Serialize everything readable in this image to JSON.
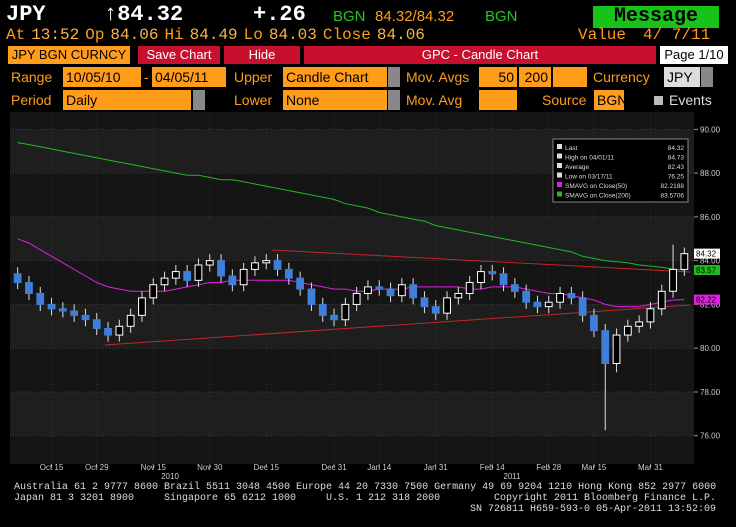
{
  "header": {
    "ticker": "JPY",
    "price": "↑84.32",
    "change": "+.26",
    "source": "BGN",
    "bid_ask": "84.32/84.32",
    "source2": "BGN",
    "message": "Message",
    "quote": [
      {
        "label": "At",
        "value": "13:52"
      },
      {
        "label": "Op",
        "value": "84.06"
      },
      {
        "label": "Hi",
        "value": "84.49"
      },
      {
        "label": "Lo",
        "value": "84.03"
      },
      {
        "label": "Close",
        "value": "84.06"
      }
    ],
    "value_label": "Value",
    "value_date": "4/ 7/11"
  },
  "toolbar": {
    "security": "JPY BGN CURNCY",
    "save": "Save Chart",
    "hide": "Hide",
    "title": "GPC - Candle Chart",
    "page": "Page 1/10"
  },
  "form": {
    "range_label": "Range",
    "range_start": "10/05/10",
    "range_sep": "-",
    "range_end": "04/05/11",
    "upper_label": "Upper",
    "upper": "Candle Chart",
    "mov_avgs_label": "Mov. Avgs",
    "mov_avg_1": "50",
    "mov_avg_2": "200",
    "currency_label": "Currency",
    "currency": "JPY",
    "period_label": "Period",
    "period": "Daily",
    "lower_label": "Lower",
    "lower": "None",
    "mov_avg_label": "Mov. Avg",
    "source_label": "Source",
    "source": "BGN",
    "events": "Events"
  },
  "chart_data": {
    "type": "candlestick",
    "categories": [
      null,
      null,
      null,
      "Oct 15",
      null,
      null,
      null,
      "Oct 29",
      null,
      null,
      null,
      null,
      "Nov 15",
      null,
      null,
      null,
      null,
      "Nov 30",
      null,
      null,
      null,
      null,
      "Dec 15",
      null,
      null,
      null,
      null,
      null,
      "Dec 31",
      null,
      null,
      null,
      "Jan 14",
      null,
      null,
      null,
      null,
      "Jan 31",
      null,
      null,
      null,
      null,
      "Feb 14",
      null,
      null,
      null,
      null,
      "Feb 28",
      null,
      null,
      null,
      "Mar 15",
      null,
      null,
      null,
      null,
      "Mar 31",
      null,
      null,
      null
    ],
    "year_labels": [
      "2010",
      "2011"
    ],
    "open": [
      83.4,
      83.0,
      82.5,
      82.0,
      81.8,
      81.7,
      81.5,
      81.3,
      80.9,
      80.6,
      81.0,
      81.5,
      82.3,
      82.9,
      83.2,
      83.5,
      83.1,
      83.8,
      84.0,
      83.3,
      82.9,
      83.6,
      83.9,
      84.0,
      83.6,
      83.2,
      82.7,
      82.0,
      81.5,
      81.3,
      82.0,
      82.5,
      82.8,
      82.7,
      82.4,
      82.9,
      82.3,
      81.9,
      81.6,
      82.3,
      82.5,
      83.0,
      83.5,
      83.4,
      82.9,
      82.6,
      82.1,
      81.9,
      82.1,
      82.5,
      82.3,
      81.5,
      80.8,
      79.3,
      80.6,
      81.0,
      81.2,
      81.8,
      82.6,
      83.6
    ],
    "high": [
      83.7,
      83.3,
      82.8,
      82.3,
      82.1,
      82.0,
      81.8,
      81.6,
      81.2,
      81.3,
      81.8,
      82.6,
      83.2,
      83.5,
      83.8,
      83.8,
      84.1,
      84.3,
      84.3,
      83.6,
      83.9,
      84.2,
      84.3,
      84.3,
      83.9,
      83.5,
      83.0,
      82.3,
      81.8,
      82.3,
      82.8,
      83.1,
      83.1,
      83.0,
      83.2,
      83.2,
      82.6,
      82.2,
      82.6,
      82.8,
      83.3,
      83.8,
      83.8,
      83.7,
      83.2,
      82.9,
      82.4,
      82.4,
      82.8,
      82.8,
      82.6,
      81.8,
      81.1,
      80.9,
      81.3,
      81.5,
      82.1,
      82.9,
      84.73,
      84.6
    ],
    "low": [
      82.7,
      82.2,
      81.7,
      81.5,
      81.4,
      81.2,
      81.0,
      80.6,
      80.3,
      80.3,
      80.7,
      81.2,
      82.0,
      82.6,
      82.9,
      82.8,
      82.8,
      83.5,
      83.0,
      82.6,
      82.6,
      83.3,
      83.6,
      83.3,
      82.9,
      82.4,
      81.7,
      81.2,
      81.0,
      81.0,
      81.7,
      82.2,
      82.4,
      82.1,
      82.1,
      82.0,
      81.6,
      81.3,
      81.3,
      82.0,
      82.2,
      82.7,
      83.1,
      82.6,
      82.3,
      81.8,
      81.6,
      81.6,
      81.8,
      82.0,
      81.2,
      80.5,
      76.25,
      78.9,
      80.3,
      80.7,
      80.9,
      81.5,
      82.3,
      83.3
    ],
    "close": [
      83.0,
      82.5,
      82.0,
      81.8,
      81.7,
      81.5,
      81.3,
      80.9,
      80.6,
      81.0,
      81.5,
      82.3,
      82.9,
      83.2,
      83.5,
      83.1,
      83.8,
      84.0,
      83.3,
      82.9,
      83.6,
      83.9,
      84.0,
      83.6,
      83.2,
      82.7,
      82.0,
      81.5,
      81.3,
      82.0,
      82.5,
      82.8,
      82.7,
      82.4,
      82.9,
      82.3,
      81.9,
      81.6,
      82.3,
      82.5,
      83.0,
      83.5,
      83.4,
      82.9,
      82.6,
      82.1,
      81.9,
      82.1,
      82.5,
      82.3,
      81.5,
      80.8,
      79.3,
      80.6,
      81.0,
      81.2,
      81.8,
      82.6,
      83.6,
      84.32
    ],
    "up_color": "#ffffff",
    "down_color": "#3f7fd9",
    "moving_averages": [
      {
        "name": "SMAVG on Close(50)",
        "color": "#e020e0",
        "values": [
          85.0,
          84.8,
          84.5,
          84.2,
          83.9,
          83.6,
          83.3,
          83.0,
          82.8,
          82.7,
          82.6,
          82.6,
          82.6,
          82.6,
          82.7,
          82.8,
          82.9,
          83.0,
          83.0,
          83.1,
          83.1,
          83.1,
          83.1,
          83.1,
          83.1,
          83.0,
          82.9,
          82.8,
          82.7,
          82.7,
          82.6,
          82.6,
          82.7,
          82.7,
          82.7,
          82.8,
          82.8,
          82.8,
          82.8,
          82.8,
          82.7,
          82.7,
          82.8,
          82.8,
          82.8,
          82.7,
          82.6,
          82.5,
          82.5,
          82.4,
          82.3,
          82.2,
          82.0,
          81.9,
          81.9,
          81.9,
          82.0,
          82.1,
          82.2,
          82.2188
        ]
      },
      {
        "name": "SMAVG on Close(200)",
        "color": "#22b822",
        "values": [
          89.4,
          89.3,
          89.2,
          89.1,
          89.0,
          88.9,
          88.8,
          88.7,
          88.6,
          88.5,
          88.4,
          88.3,
          88.2,
          88.1,
          88.0,
          87.9,
          87.9,
          87.8,
          87.7,
          87.7,
          87.6,
          87.5,
          87.4,
          87.3,
          87.2,
          87.1,
          87.0,
          86.9,
          86.8,
          86.6,
          86.5,
          86.4,
          86.2,
          86.1,
          86.0,
          85.9,
          85.8,
          85.6,
          85.5,
          85.4,
          85.3,
          85.2,
          85.1,
          85.0,
          84.9,
          84.8,
          84.7,
          84.6,
          84.5,
          84.4,
          84.2,
          84.1,
          84.0,
          83.95,
          83.9,
          83.8,
          83.75,
          83.7,
          83.6,
          83.5706
        ]
      }
    ],
    "legend": [
      {
        "label": "Last",
        "value": 84.32
      },
      {
        "label": "High on 04/01/11",
        "value": 84.73
      },
      {
        "label": "Average",
        "value": 82.43
      },
      {
        "label": "Low on 03/17/11",
        "value": 76.25
      },
      {
        "label": "SMAVG on Close(50)",
        "value": 82.2188,
        "color": "#e020e0"
      },
      {
        "label": "SMAVG on Close(200)",
        "value": 83.5706,
        "color": "#22b822"
      }
    ],
    "price_tags": [
      {
        "value": 84.32,
        "color": "#ffffff"
      },
      {
        "value": 83.57,
        "color": "#22b822"
      },
      {
        "value": 82.22,
        "color": "#e020e0"
      }
    ],
    "ylim": [
      74.8,
      90.7
    ],
    "yticks": [
      {
        "value": 76,
        "label": "76.00"
      },
      {
        "value": 78,
        "label": "78.00"
      },
      {
        "value": 80,
        "label": "80.00"
      },
      {
        "value": 82,
        "label": "82.00"
      },
      {
        "value": 84,
        "label": "84.00"
      },
      {
        "value": 86,
        "label": "86.00"
      },
      {
        "value": 88,
        "label": "88.00"
      },
      {
        "value": 90,
        "label": "90.00"
      }
    ],
    "grid": true
  },
  "footer": {
    "line1": "Australia 61 2 9777 8600 Brazil 5511 3048 4500 Europe 44 20 7330 7500 Germany 49 69 9204 1210 Hong Kong 852 2977 6000",
    "line2a": "Japan 81 3 3201 8900     Singapore 65 6212 1000     U.S. 1 212 318 2000",
    "line2b": "Copyright 2011 Bloomberg Finance L.P.",
    "line3": "SN 726811 H659-593-0 05-Apr-2011 13:52:09"
  }
}
